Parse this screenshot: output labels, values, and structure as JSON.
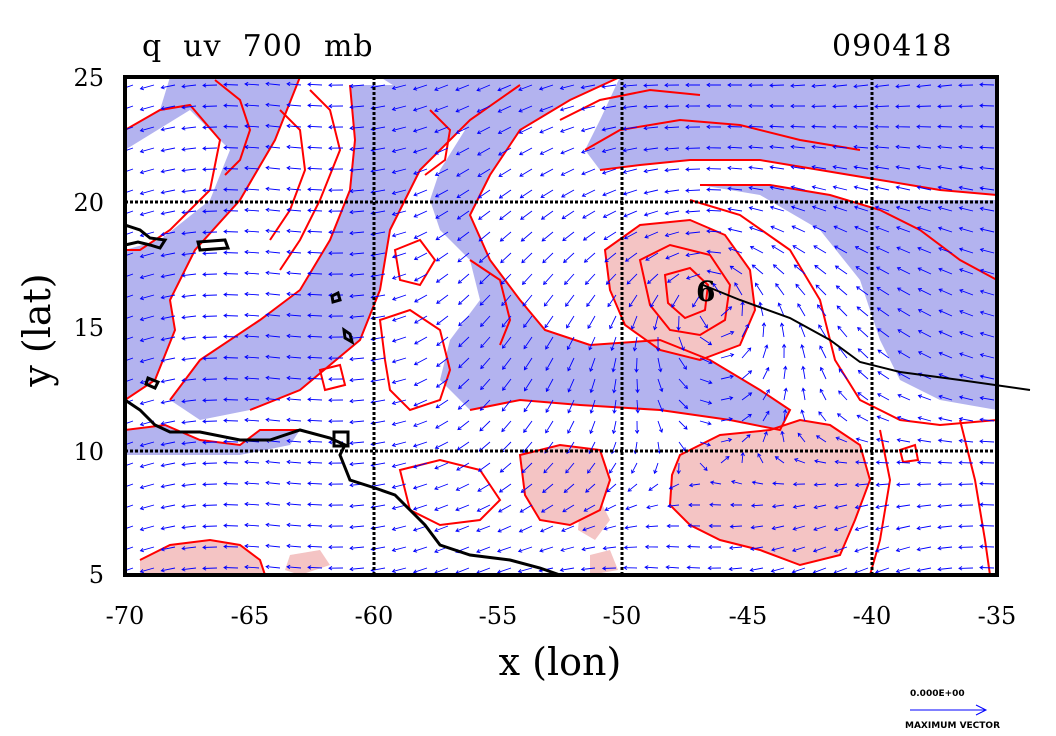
{
  "title": "q  uv  700  mb",
  "timestamp": "090418",
  "axes": {
    "x_label": "x (lon)",
    "y_label": "y (lat)",
    "x_ticks": [
      -70,
      -65,
      -60,
      -55,
      -50,
      -45,
      -40,
      -35
    ],
    "y_ticks": [
      5,
      10,
      15,
      20,
      25
    ],
    "x_range": [
      -70,
      -35
    ],
    "y_range": [
      5,
      25
    ],
    "grid_lines_lon": [
      -60,
      -50,
      -40
    ],
    "grid_lines_lat": [
      10,
      20
    ]
  },
  "legend": {
    "vector_magnitude": "0.000E+00",
    "vector_label": "MAXIMUM VECTOR"
  },
  "storm": {
    "symbol": "6",
    "lon": -46.4,
    "lat": 16.2
  },
  "colors": {
    "moist_fill": "#b3b3ef",
    "dry_fill": "#f4c4c4",
    "contour": "#ff0000",
    "vectors": "#0000ff",
    "coast": "#000000"
  }
}
